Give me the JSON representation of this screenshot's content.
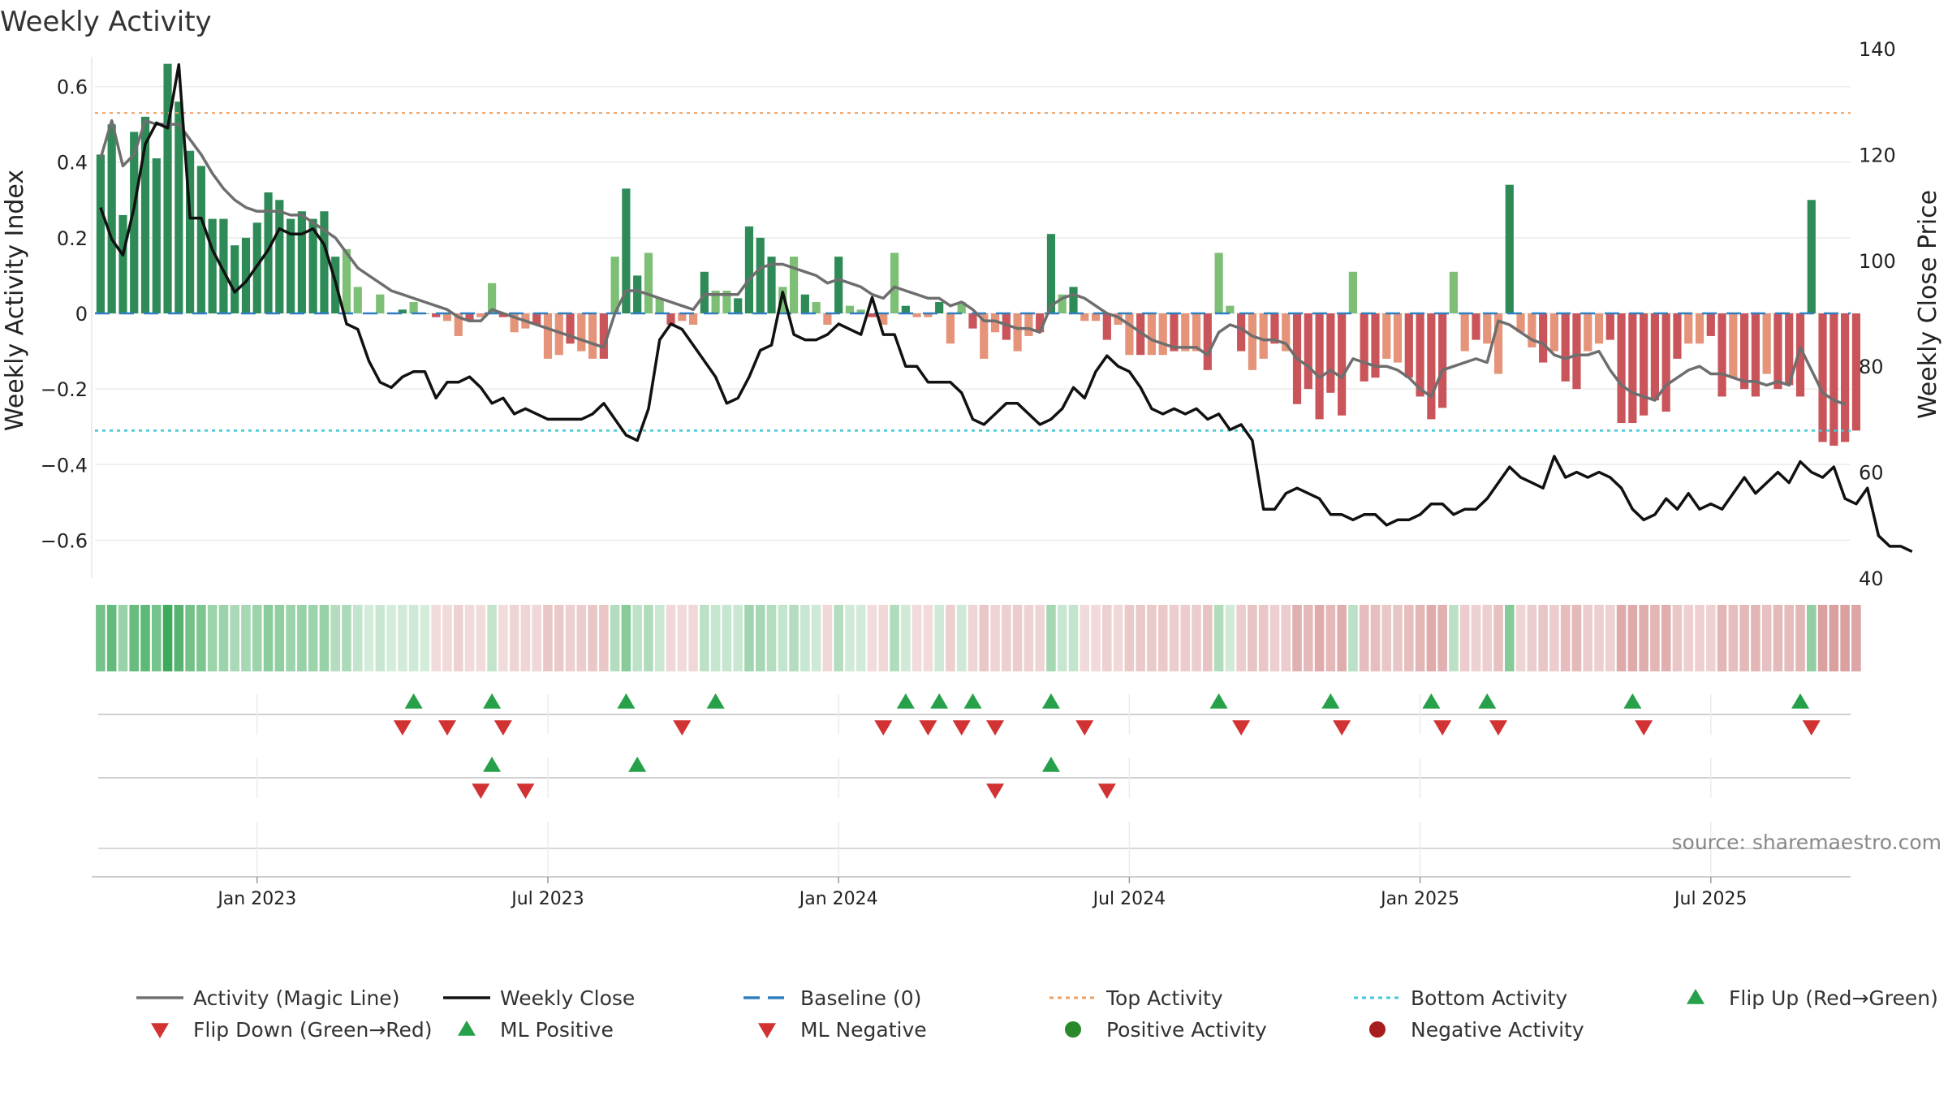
{
  "chart_data": {
    "type": "bar",
    "title": "Weekly Activity",
    "ylabel_left": "Weekly Activity Index",
    "ylabel_right": "Weekly Close Price",
    "ylim_left": [
      -0.7,
      0.7
    ],
    "ylim_right": [
      40,
      140
    ],
    "left_ticks": [
      {
        "v": 0.6,
        "label": "0.6"
      },
      {
        "v": 0.4,
        "label": "0.4"
      },
      {
        "v": 0.2,
        "label": "0.2"
      },
      {
        "v": 0,
        "label": "0"
      },
      {
        "v": -0.2,
        "label": "−0.2"
      },
      {
        "v": -0.4,
        "label": "−0.4"
      },
      {
        "v": -0.6,
        "label": "−0.6"
      }
    ],
    "right_ticks": [
      {
        "v": 140,
        "label": "140"
      },
      {
        "v": 120,
        "label": "120"
      },
      {
        "v": 100,
        "label": "100"
      },
      {
        "v": 80,
        "label": "80"
      },
      {
        "v": 60,
        "label": "60"
      },
      {
        "v": 40,
        "label": "40"
      }
    ],
    "x_ticks": [
      {
        "week": 14,
        "label": "Jan 2023"
      },
      {
        "week": 40,
        "label": "Jul 2023"
      },
      {
        "week": 66,
        "label": "Jan 2024"
      },
      {
        "week": 92,
        "label": "Jul 2024"
      },
      {
        "week": 118,
        "label": "Jan 2025"
      },
      {
        "week": 144,
        "label": "Jul 2025"
      }
    ],
    "week_count": 157,
    "top_activity": 0.53,
    "bottom_activity": -0.31,
    "activity": [
      0.42,
      0.5,
      0.26,
      0.48,
      0.52,
      0.41,
      0.66,
      0.56,
      0.43,
      0.39,
      0.25,
      0.25,
      0.18,
      0.2,
      0.24,
      0.32,
      0.3,
      0.25,
      0.27,
      0.25,
      0.27,
      0.15,
      0.17,
      0.07,
      0,
      0.05,
      0,
      0.01,
      0.03,
      0,
      -0.01,
      -0.02,
      -0.06,
      -0.02,
      -0.01,
      0.08,
      -0.01,
      -0.05,
      -0.04,
      -0.03,
      -0.12,
      -0.11,
      -0.08,
      -0.1,
      -0.12,
      -0.12,
      0.15,
      0.33,
      0.1,
      0.16,
      0.04,
      -0.03,
      -0.02,
      -0.03,
      0.11,
      0.06,
      0.06,
      0.04,
      0.23,
      0.2,
      0.15,
      0.07,
      0.15,
      0.05,
      0.03,
      -0.03,
      0.15,
      0.02,
      0.01,
      -0.01,
      -0.03,
      0.16,
      0.02,
      -0.01,
      -0.01,
      0.03,
      -0.08,
      0.03,
      -0.04,
      -0.12,
      -0.05,
      -0.07,
      -0.1,
      -0.06,
      -0.05,
      0.21,
      0.05,
      0.07,
      -0.02,
      -0.02,
      -0.07,
      -0.03,
      -0.11,
      -0.11,
      -0.11,
      -0.11,
      -0.1,
      -0.1,
      -0.1,
      -0.15,
      0.16,
      0.02,
      -0.1,
      -0.15,
      -0.12,
      -0.08,
      -0.1,
      -0.24,
      -0.2,
      -0.28,
      -0.21,
      -0.27,
      0.11,
      -0.18,
      -0.17,
      -0.12,
      -0.13,
      -0.17,
      -0.22,
      -0.28,
      -0.25,
      0.11,
      -0.1,
      -0.07,
      -0.08,
      -0.16,
      0.34,
      -0.05,
      -0.09,
      -0.13,
      -0.1,
      -0.18,
      -0.2,
      -0.1,
      -0.08,
      -0.07,
      -0.29,
      -0.29,
      -0.27,
      -0.23,
      -0.26,
      -0.12,
      -0.08,
      -0.08,
      -0.06,
      -0.22,
      -0.17,
      -0.2,
      -0.22,
      -0.16,
      -0.2,
      -0.19,
      -0.22,
      0.3,
      -0.34,
      -0.35,
      -0.34,
      -0.31
    ],
    "magic_line": [
      0.41,
      0.51,
      0.39,
      0.42,
      0.51,
      0.5,
      0.5,
      0.5,
      0.46,
      0.42,
      0.37,
      0.33,
      0.3,
      0.28,
      0.27,
      0.27,
      0.27,
      0.26,
      0.26,
      0.24,
      0.22,
      0.2,
      0.16,
      0.12,
      0.1,
      0.08,
      0.06,
      0.05,
      0.04,
      0.03,
      0.02,
      0.01,
      -0.01,
      -0.02,
      -0.02,
      0.01,
      0,
      -0.01,
      -0.02,
      -0.03,
      -0.04,
      -0.05,
      -0.06,
      -0.07,
      -0.08,
      -0.09,
      0,
      0.06,
      0.06,
      0.05,
      0.04,
      0.03,
      0.02,
      0.01,
      0.05,
      0.05,
      0.05,
      0.05,
      0.09,
      0.12,
      0.13,
      0.13,
      0.12,
      0.11,
      0.1,
      0.08,
      0.09,
      0.08,
      0.07,
      0.05,
      0.04,
      0.07,
      0.06,
      0.05,
      0.04,
      0.04,
      0.02,
      0.03,
      0.01,
      -0.02,
      -0.02,
      -0.03,
      -0.04,
      -0.04,
      -0.05,
      0.02,
      0.04,
      0.05,
      0.04,
      0.02,
      0,
      -0.01,
      -0.03,
      -0.05,
      -0.07,
      -0.08,
      -0.09,
      -0.09,
      -0.09,
      -0.11,
      -0.05,
      -0.03,
      -0.04,
      -0.06,
      -0.07,
      -0.07,
      -0.08,
      -0.12,
      -0.14,
      -0.17,
      -0.15,
      -0.17,
      -0.12,
      -0.13,
      -0.14,
      -0.14,
      -0.15,
      -0.17,
      -0.2,
      -0.22,
      -0.15,
      -0.14,
      -0.13,
      -0.12,
      -0.13,
      -0.02,
      -0.03,
      -0.05,
      -0.07,
      -0.08,
      -0.11,
      -0.12,
      -0.11,
      -0.11,
      -0.1,
      -0.15,
      -0.19,
      -0.21,
      -0.22,
      -0.23,
      -0.19,
      -0.17,
      -0.15,
      -0.14,
      -0.16,
      -0.16,
      -0.17,
      -0.18,
      -0.18,
      -0.19,
      -0.18,
      -0.19,
      -0.09,
      -0.15,
      -0.21,
      -0.23,
      -0.24
    ],
    "weekly_close": [
      110,
      104,
      101,
      110,
      122,
      126,
      125,
      137,
      108,
      108,
      102,
      98,
      94,
      96,
      99,
      102,
      106,
      105,
      105,
      106,
      103,
      96,
      88,
      87,
      81,
      77,
      76,
      78,
      79,
      79,
      74,
      77,
      77,
      78,
      76,
      73,
      74,
      71,
      72,
      71,
      70,
      70,
      70,
      70,
      71,
      73,
      70,
      67,
      66,
      72,
      85,
      88,
      87,
      84,
      81,
      78,
      73,
      74,
      78,
      83,
      84,
      94,
      86,
      85,
      85,
      86,
      88,
      87,
      86,
      93,
      86,
      86,
      80,
      80,
      77,
      77,
      77,
      75,
      70,
      69,
      71,
      73,
      73,
      71,
      69,
      70,
      72,
      76,
      74,
      79,
      82,
      80,
      79,
      76,
      72,
      71,
      72,
      71,
      72,
      70,
      71,
      68,
      69,
      66,
      53,
      53,
      56,
      57,
      56,
      55,
      52,
      52,
      51,
      52,
      52,
      50,
      51,
      51,
      52,
      54,
      54,
      52,
      53,
      53,
      55,
      58,
      61,
      59,
      58,
      57,
      63,
      59,
      60,
      59,
      60,
      59,
      57,
      53,
      51,
      52,
      55,
      53,
      56,
      53,
      54,
      53,
      56,
      59,
      56,
      58,
      60,
      58,
      62,
      60,
      59,
      61,
      55,
      54,
      57,
      48,
      46,
      46,
      45
    ]
  },
  "fill_colors": {
    "pos_strong": "#2e8b57",
    "pos_light": "#7cbf75",
    "neg_strong": "#c9555a",
    "neg_light": "#e59379"
  },
  "flip_up_weeks": [
    28,
    35,
    47,
    55,
    72,
    75,
    78,
    85,
    100,
    110,
    119,
    124,
    137,
    152
  ],
  "flip_down_weeks": [
    27,
    31,
    36,
    52,
    70,
    74,
    77,
    80,
    88,
    102,
    111,
    120,
    125,
    138,
    153
  ],
  "ml_positive_weeks": [
    35,
    48,
    85
  ],
  "ml_negative_weeks": [
    34,
    38,
    80,
    90
  ],
  "source": "source: sharemaestro.com",
  "legend": [
    {
      "label": "Activity (Magic Line)",
      "kind": "line",
      "color": "#707070"
    },
    {
      "label": "Weekly Close",
      "kind": "line",
      "color": "#111111"
    },
    {
      "label": "Baseline (0)",
      "kind": "dash",
      "color": "#2f7fc0"
    },
    {
      "label": "Top Activity",
      "kind": "dot",
      "color": "#f0a060"
    },
    {
      "label": "Bottom Activity",
      "kind": "dot",
      "color": "#3fc8d8"
    },
    {
      "label": "Flip Up (Red→Green)",
      "kind": "up",
      "color": "#27a04a"
    },
    {
      "label": "Flip Down (Green→Red)",
      "kind": "down",
      "color": "#d23232"
    },
    {
      "label": "ML Positive",
      "kind": "up",
      "color": "#27a04a"
    },
    {
      "label": "ML Negative",
      "kind": "down",
      "color": "#d23232"
    },
    {
      "label": "Positive Activity",
      "kind": "circle",
      "color": "#2a8a2a"
    },
    {
      "label": "Negative Activity",
      "kind": "circle",
      "color": "#a81e1e"
    }
  ]
}
